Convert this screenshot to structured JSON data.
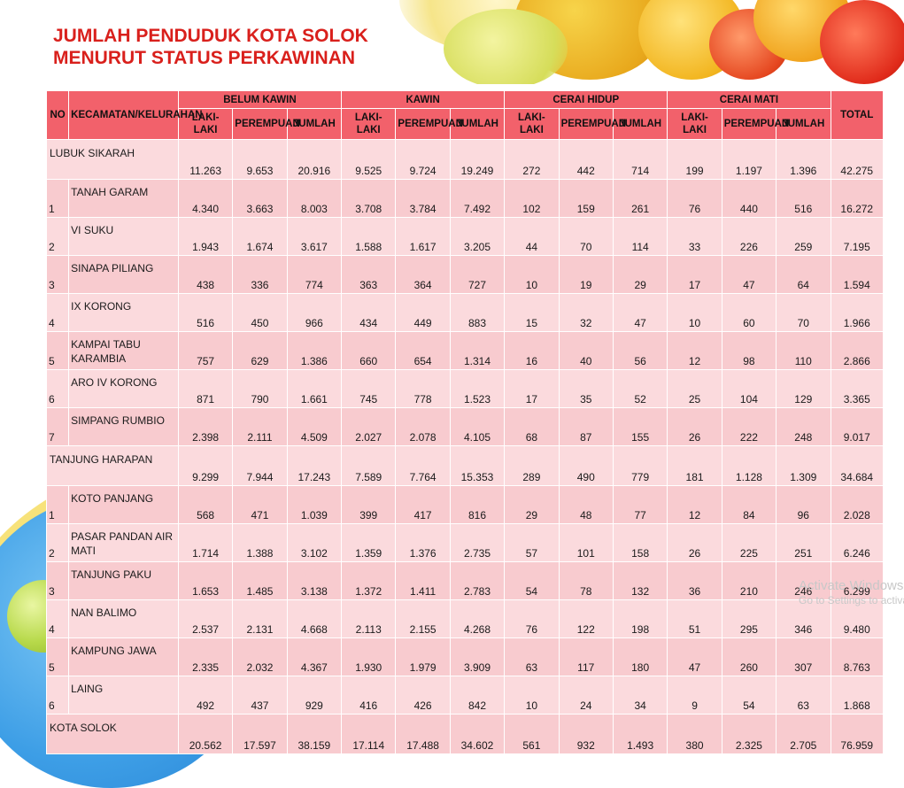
{
  "title": {
    "line1": "JUMLAH PENDUDUK KOTA SOLOK",
    "line2": "MENURUT STATUS PERKAWINAN"
  },
  "headers": {
    "no": "NO",
    "kecamatan": "KECAMATAN/KELURAHAN",
    "groups": [
      "BELUM KAWIN",
      "KAWIN",
      "CERAI HIDUP",
      "CERAI MATI"
    ],
    "total": "TOTAL",
    "sub": [
      "LAKI-LAKI",
      "PEREMPUAN",
      "JUMLAH"
    ]
  },
  "rows": [
    {
      "no": "",
      "name": "LUBUK SIKARAH",
      "region": true,
      "values": [
        "11.263",
        "9.653",
        "20.916",
        "9.525",
        "9.724",
        "19.249",
        "272",
        "442",
        "714",
        "199",
        "1.197",
        "1.396",
        "42.275"
      ]
    },
    {
      "no": "1",
      "name": "TANAH GARAM",
      "values": [
        "4.340",
        "3.663",
        "8.003",
        "3.708",
        "3.784",
        "7.492",
        "102",
        "159",
        "261",
        "76",
        "440",
        "516",
        "16.272"
      ]
    },
    {
      "no": "2",
      "name": "VI SUKU",
      "values": [
        "1.943",
        "1.674",
        "3.617",
        "1.588",
        "1.617",
        "3.205",
        "44",
        "70",
        "114",
        "33",
        "226",
        "259",
        "7.195"
      ]
    },
    {
      "no": "3",
      "name": "SINAPA PILIANG",
      "values": [
        "438",
        "336",
        "774",
        "363",
        "364",
        "727",
        "10",
        "19",
        "29",
        "17",
        "47",
        "64",
        "1.594"
      ]
    },
    {
      "no": "4",
      "name": "IX KORONG",
      "values": [
        "516",
        "450",
        "966",
        "434",
        "449",
        "883",
        "15",
        "32",
        "47",
        "10",
        "60",
        "70",
        "1.966"
      ]
    },
    {
      "no": "5",
      "name": "KAMPAI TABU KARAMBIA",
      "values": [
        "757",
        "629",
        "1.386",
        "660",
        "654",
        "1.314",
        "16",
        "40",
        "56",
        "12",
        "98",
        "110",
        "2.866"
      ]
    },
    {
      "no": "6",
      "name": "ARO IV KORONG",
      "values": [
        "871",
        "790",
        "1.661",
        "745",
        "778",
        "1.523",
        "17",
        "35",
        "52",
        "25",
        "104",
        "129",
        "3.365"
      ]
    },
    {
      "no": "7",
      "name": "SIMPANG RUMBIO",
      "values": [
        "2.398",
        "2.111",
        "4.509",
        "2.027",
        "2.078",
        "4.105",
        "68",
        "87",
        "155",
        "26",
        "222",
        "248",
        "9.017"
      ]
    },
    {
      "no": "",
      "name": "TANJUNG HARAPAN",
      "region": true,
      "values": [
        "9.299",
        "7.944",
        "17.243",
        "7.589",
        "7.764",
        "15.353",
        "289",
        "490",
        "779",
        "181",
        "1.128",
        "1.309",
        "34.684"
      ]
    },
    {
      "no": "1",
      "name": "KOTO PANJANG",
      "values": [
        "568",
        "471",
        "1.039",
        "399",
        "417",
        "816",
        "29",
        "48",
        "77",
        "12",
        "84",
        "96",
        "2.028"
      ]
    },
    {
      "no": "2",
      "name": "PASAR PANDAN AIR MATI",
      "values": [
        "1.714",
        "1.388",
        "3.102",
        "1.359",
        "1.376",
        "2.735",
        "57",
        "101",
        "158",
        "26",
        "225",
        "251",
        "6.246"
      ]
    },
    {
      "no": "3",
      "name": "TANJUNG PAKU",
      "values": [
        "1.653",
        "1.485",
        "3.138",
        "1.372",
        "1.411",
        "2.783",
        "54",
        "78",
        "132",
        "36",
        "210",
        "246",
        "6.299"
      ]
    },
    {
      "no": "4",
      "name": "NAN BALIMO",
      "values": [
        "2.537",
        "2.131",
        "4.668",
        "2.113",
        "2.155",
        "4.268",
        "76",
        "122",
        "198",
        "51",
        "295",
        "346",
        "9.480"
      ]
    },
    {
      "no": "5",
      "name": "KAMPUNG JAWA",
      "values": [
        "2.335",
        "2.032",
        "4.367",
        "1.930",
        "1.979",
        "3.909",
        "63",
        "117",
        "180",
        "47",
        "260",
        "307",
        "8.763"
      ]
    },
    {
      "no": "6",
      "name": "LAING",
      "values": [
        "492",
        "437",
        "929",
        "416",
        "426",
        "842",
        "10",
        "24",
        "34",
        "9",
        "54",
        "63",
        "1.868"
      ]
    },
    {
      "no": "",
      "name": "KOTA SOLOK",
      "region": true,
      "values": [
        "20.562",
        "17.597",
        "38.159",
        "17.114",
        "17.488",
        "34.602",
        "561",
        "932",
        "1.493",
        "380",
        "2.325",
        "2.705",
        "76.959"
      ]
    }
  ],
  "watermark": {
    "line1": "Activate Windows",
    "line2": "Go to Settings to activate Windows."
  },
  "colors": {
    "title": "#d9201c",
    "header": "#f2616b",
    "row_light": "#fbdadd",
    "row_dark": "#f8cbcf"
  }
}
